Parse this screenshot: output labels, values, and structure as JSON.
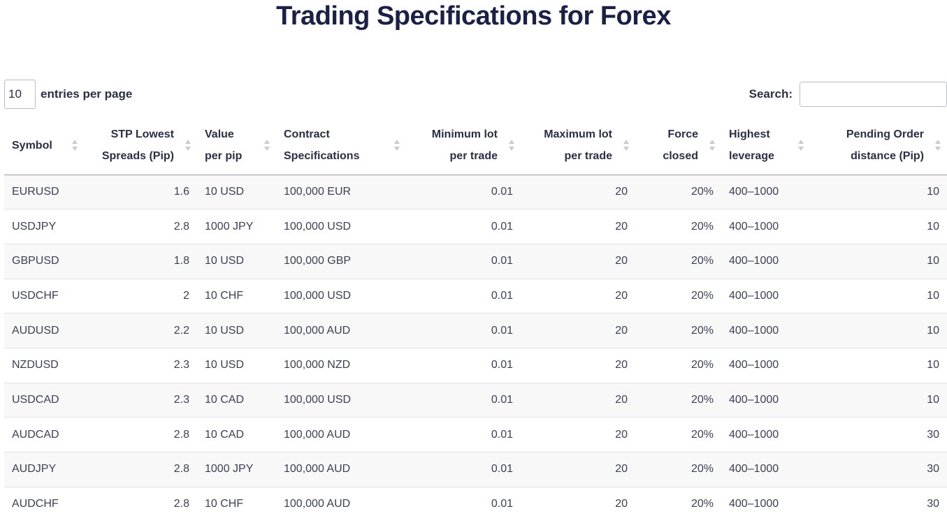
{
  "page": {
    "title": "Trading Specifications for Forex"
  },
  "controls": {
    "per_page_value": "10",
    "per_page_label": "entries per page",
    "search_label": "Search:",
    "search_value": ""
  },
  "table": {
    "columns": [
      {
        "lines": [
          "Symbol"
        ],
        "align": "left"
      },
      {
        "lines": [
          "STP Lowest",
          "Spreads (Pip)"
        ],
        "align": "right"
      },
      {
        "lines": [
          "Value",
          "per pip"
        ],
        "align": "left"
      },
      {
        "lines": [
          "Contract",
          "Specifications"
        ],
        "align": "left"
      },
      {
        "lines": [
          "Minimum lot",
          "per trade"
        ],
        "align": "right"
      },
      {
        "lines": [
          "Maximum lot",
          "per trade"
        ],
        "align": "right"
      },
      {
        "lines": [
          "Force",
          "closed"
        ],
        "align": "right"
      },
      {
        "lines": [
          "Highest",
          "leverage"
        ],
        "align": "left"
      },
      {
        "lines": [
          "Pending Order",
          "distance (Pip)"
        ],
        "align": "right"
      }
    ],
    "rows": [
      [
        "EURUSD",
        "1.6",
        "10 USD",
        "100,000 EUR",
        "0.01",
        "20",
        "20%",
        "400–1000",
        "10"
      ],
      [
        "USDJPY",
        "2.8",
        "1000 JPY",
        "100,000 USD",
        "0.01",
        "20",
        "20%",
        "400–1000",
        "10"
      ],
      [
        "GBPUSD",
        "1.8",
        "10 USD",
        "100,000 GBP",
        "0.01",
        "20",
        "20%",
        "400–1000",
        "10"
      ],
      [
        "USDCHF",
        "2",
        "10 CHF",
        "100,000 USD",
        "0.01",
        "20",
        "20%",
        "400–1000",
        "10"
      ],
      [
        "AUDUSD",
        "2.2",
        "10 USD",
        "100,000 AUD",
        "0.01",
        "20",
        "20%",
        "400–1000",
        "10"
      ],
      [
        "NZDUSD",
        "2.3",
        "10 USD",
        "100,000 NZD",
        "0.01",
        "20",
        "20%",
        "400–1000",
        "10"
      ],
      [
        "USDCAD",
        "2.3",
        "10 CAD",
        "100,000 USD",
        "0.01",
        "20",
        "20%",
        "400–1000",
        "10"
      ],
      [
        "AUDCAD",
        "2.8",
        "10 CAD",
        "100,000 AUD",
        "0.01",
        "20",
        "20%",
        "400–1000",
        "30"
      ],
      [
        "AUDJPY",
        "2.8",
        "1000 JPY",
        "100,000 AUD",
        "0.01",
        "20",
        "20%",
        "400–1000",
        "30"
      ],
      [
        "AUDCHF",
        "2.8",
        "10 CHF",
        "100,000 AUD",
        "0.01",
        "20",
        "20%",
        "400–1000",
        "30"
      ]
    ]
  },
  "colors": {
    "title": "#1b2146",
    "text": "#3b4056",
    "row_stripe": "#f8f8f8",
    "sort_icon": "#c9cbd2"
  },
  "icons": {
    "sort": "sort-arrows-icon"
  }
}
